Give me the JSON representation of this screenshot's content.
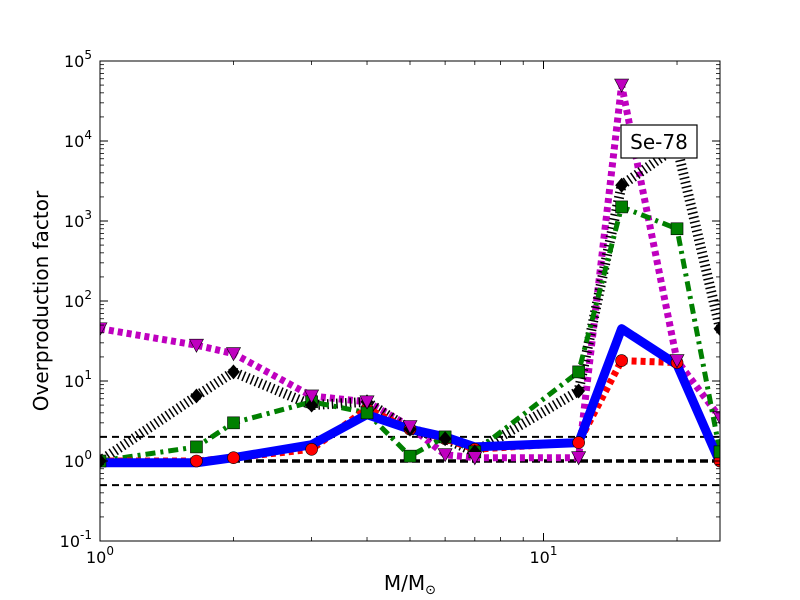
{
  "chart_data": {
    "type": "line",
    "title": "",
    "xlabel": "M/M⊙",
    "ylabel": "Overproduction factor",
    "xscale": "log",
    "yscale": "log",
    "xlim": [
      1,
      25
    ],
    "ylim": [
      0.1,
      100000
    ],
    "grid": false,
    "legend": "none",
    "x_ticks": [
      {
        "value": 1,
        "base": "10",
        "exp": "0"
      },
      {
        "value": 10,
        "base": "10",
        "exp": "1"
      }
    ],
    "y_ticks": [
      {
        "value": 0.1,
        "base": "10",
        "exp": "-1"
      },
      {
        "value": 1,
        "base": "10",
        "exp": "0"
      },
      {
        "value": 10,
        "base": "10",
        "exp": "1"
      },
      {
        "value": 100,
        "base": "10",
        "exp": "2"
      },
      {
        "value": 1000,
        "base": "10",
        "exp": "3"
      },
      {
        "value": 10000,
        "base": "10",
        "exp": "4"
      },
      {
        "value": 100000,
        "base": "10",
        "exp": "5"
      }
    ],
    "annotation": "Se-78",
    "reference_lines": [
      {
        "y": 1,
        "style": "thick-dashed",
        "color": "#000000"
      },
      {
        "y": 2,
        "style": "dashed",
        "color": "#000000"
      },
      {
        "y": 0.5,
        "style": "dashed",
        "color": "#000000"
      }
    ],
    "series": [
      {
        "color": "#ff0000",
        "line": "dotted",
        "marker": "circle",
        "x": [
          1,
          1.65,
          2,
          3,
          4,
          5,
          6,
          7,
          12,
          15,
          20,
          25
        ],
        "y": [
          1.0,
          1.0,
          1.1,
          1.4,
          4.5,
          2.5,
          1.9,
          1.4,
          1.7,
          18,
          17,
          1.0
        ]
      },
      {
        "color": "#0000ff",
        "line": "solid",
        "marker": "none",
        "x": [
          1,
          1.65,
          2,
          3,
          4,
          5,
          6,
          7,
          12,
          15,
          20,
          25
        ],
        "y": [
          0.95,
          0.95,
          1.1,
          1.6,
          3.8,
          2.5,
          2.0,
          1.5,
          1.7,
          45,
          16,
          0.95
        ]
      },
      {
        "color": "#008000",
        "line": "dashdot",
        "marker": "square",
        "x": [
          1,
          1.65,
          2,
          3,
          4,
          5,
          6,
          7,
          12,
          15,
          20,
          25
        ],
        "y": [
          1.0,
          1.5,
          3.0,
          5.5,
          4.0,
          1.15,
          2.0,
          1.3,
          13,
          1500,
          800,
          1.3
        ]
      },
      {
        "color": "#000000",
        "line": "hatched-dotted",
        "marker": "diamond",
        "x": [
          1,
          1.65,
          2,
          3,
          4,
          5,
          6,
          7,
          12,
          15,
          20,
          25
        ],
        "y": [
          1.0,
          6.5,
          13,
          5.0,
          5.5,
          2.5,
          1.9,
          1.3,
          7.5,
          2800,
          8500,
          45
        ]
      },
      {
        "color": "#bf00bf",
        "line": "dotted",
        "marker": "triangle-down",
        "x": [
          1,
          1.65,
          2,
          3,
          4,
          5,
          6,
          7,
          12,
          15,
          20,
          25
        ],
        "y": [
          45,
          28,
          22,
          6.5,
          5.5,
          2.7,
          1.2,
          1.1,
          1.1,
          50000,
          18,
          3.5
        ]
      }
    ]
  }
}
